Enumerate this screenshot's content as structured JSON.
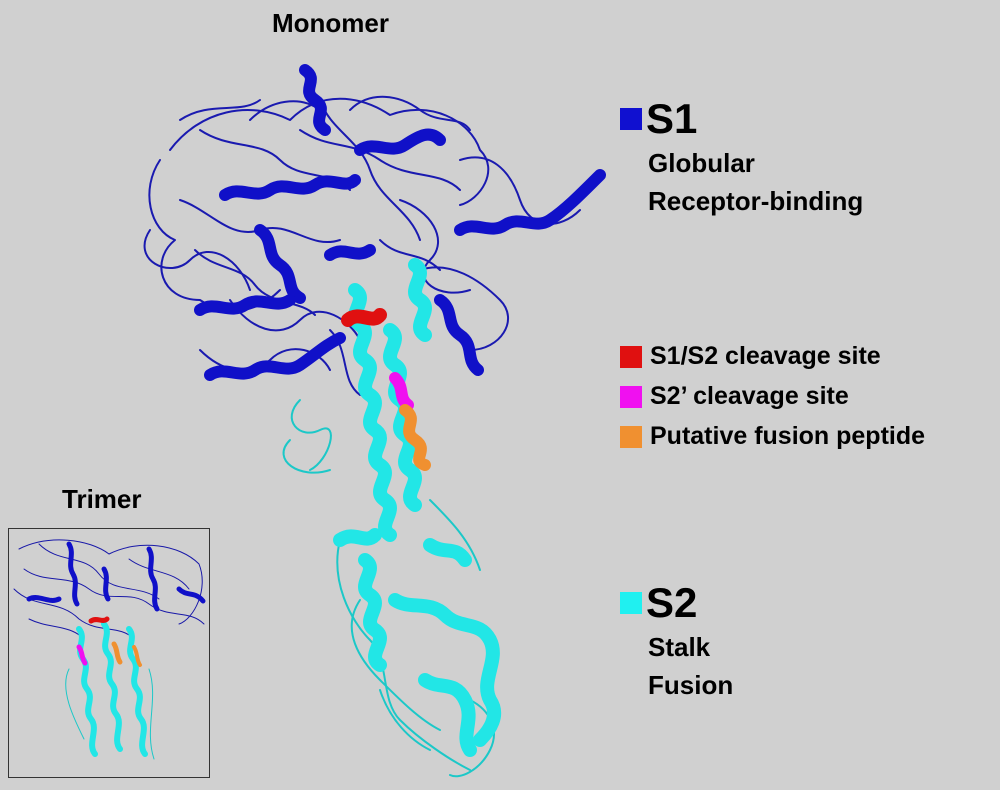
{
  "titles": {
    "monomer": "Monomer",
    "trimer": "Trimer"
  },
  "s1": {
    "heading": "S1",
    "lines": [
      "Globular",
      "Receptor-binding"
    ],
    "color": "#1010d0"
  },
  "sites": [
    {
      "label": "S1/S2 cleavage site",
      "color": "#e01010"
    },
    {
      "label": "S2’ cleavage site",
      "color": "#f010f0"
    },
    {
      "label": "Putative fusion peptide",
      "color": "#f09030"
    }
  ],
  "s2": {
    "heading": "S2",
    "lines": [
      "Stalk",
      "Fusion"
    ],
    "color": "#20f0f0"
  },
  "colors": {
    "background": "#d0d0d0",
    "s1_ribbon": "#1010c8",
    "s2_ribbon": "#22e6e6",
    "inset_border": "#333333"
  }
}
